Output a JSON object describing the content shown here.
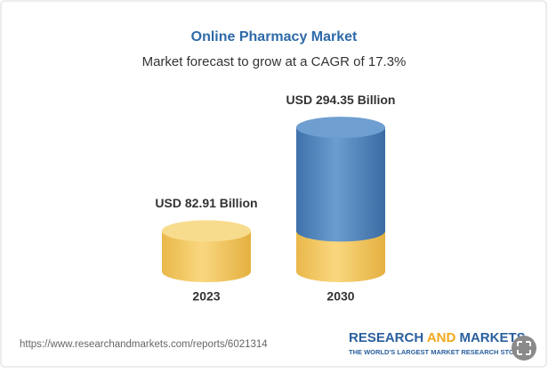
{
  "chart_data": {
    "type": "cylinder",
    "title": "Online Pharmacy Market",
    "subtitle": "Market forecast to grow at a CAGR of 17.3%",
    "categories": [
      "2023",
      "2030"
    ],
    "values": [
      82.91,
      294.35
    ],
    "value_labels": [
      "USD 82.91 Billion",
      "USD 294.35 Billion"
    ],
    "colors": [
      "#f3c55a",
      "#4f84bf"
    ]
  },
  "source": "https://www.researchandmarkets.com/reports/6021314",
  "logo": {
    "first": "RESEARCH",
    "middle": "AND",
    "last": "MARKETS",
    "tagline": "THE WORLD'S LARGEST MARKET RESEARCH STORE"
  }
}
